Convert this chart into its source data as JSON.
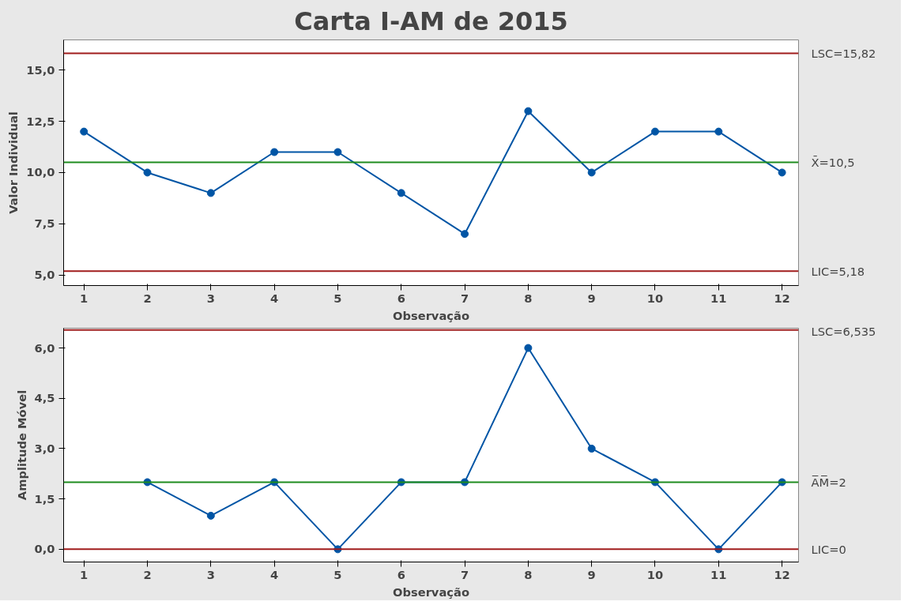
{
  "chart_data": [
    {
      "type": "line",
      "title": "Carta I-AM de 2015",
      "xlabel": "Observação",
      "ylabel": "Valor Individual",
      "x": [
        1,
        2,
        3,
        4,
        5,
        6,
        7,
        8,
        9,
        10,
        11,
        12
      ],
      "series": [
        {
          "color": "#0055a5",
          "values": [
            12,
            10,
            9,
            11,
            11,
            9,
            7,
            13,
            10,
            12,
            12,
            10
          ]
        }
      ],
      "xlim": [
        0.68,
        12.26
      ],
      "xticks": [
        1,
        2,
        3,
        4,
        5,
        6,
        7,
        8,
        9,
        10,
        11,
        12
      ],
      "ylim": [
        4.48,
        16.48
      ],
      "yticks": [
        {
          "value": 5,
          "label": "5,0"
        },
        {
          "value": 7.5,
          "label": "7,5"
        },
        {
          "value": 10,
          "label": "10,0"
        },
        {
          "value": 12.5,
          "label": "12,5"
        },
        {
          "value": 15,
          "label": "15,0"
        }
      ],
      "ref_lines": [
        {
          "axis": "y",
          "value": 15.82,
          "label": "LSC=15,82",
          "color": "#a01c1c"
        },
        {
          "axis": "y",
          "value": 10.5,
          "label": "X̄=10,5",
          "color": "#1e8c1e"
        },
        {
          "axis": "y",
          "value": 5.18,
          "label": "LIC=5,18",
          "color": "#a01c1c"
        }
      ],
      "marker": "circle",
      "grid": false
    },
    {
      "type": "line",
      "xlabel": "Observação",
      "ylabel": "Amplitude Móvel",
      "series": [
        {
          "color": "#0055a5",
          "x": [
            2,
            3,
            4,
            5,
            6,
            7,
            8,
            9,
            10,
            11,
            12
          ],
          "values": [
            2,
            1,
            2,
            0,
            2,
            2,
            6,
            3,
            2,
            0,
            2
          ]
        }
      ],
      "xlim": [
        0.68,
        12.26
      ],
      "xticks": [
        1,
        2,
        3,
        4,
        5,
        6,
        7,
        8,
        9,
        10,
        11,
        12
      ],
      "ylim": [
        -0.38,
        6.59
      ],
      "yticks": [
        {
          "value": 0,
          "label": "0,0"
        },
        {
          "value": 1.5,
          "label": "1,5"
        },
        {
          "value": 3,
          "label": "3,0"
        },
        {
          "value": 4.5,
          "label": "4,5"
        },
        {
          "value": 6,
          "label": "6,0"
        }
      ],
      "ref_lines": [
        {
          "axis": "y",
          "value": 6.535,
          "label": "LSC=6,535",
          "color": "#a01c1c"
        },
        {
          "axis": "y",
          "value": 2,
          "label": "A̅M̅=2",
          "color": "#1e8c1e"
        },
        {
          "axis": "y",
          "value": 0,
          "label": "LIC=0",
          "color": "#a01c1c"
        }
      ],
      "marker": "circle",
      "grid": false
    }
  ]
}
